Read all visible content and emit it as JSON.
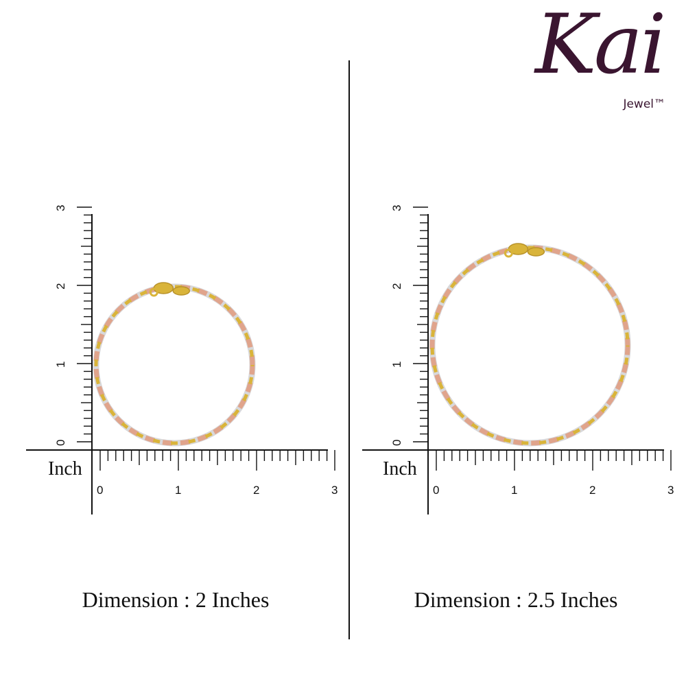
{
  "brand": {
    "script": "Kai",
    "sub": "Jewel™",
    "color": "#3a1530"
  },
  "panels": [
    {
      "unit": "Inch",
      "caption": "Dimension : 2 Inches",
      "axis_max": 3,
      "size_in": 2,
      "x_ticks": [
        "0",
        "1",
        "2",
        "3"
      ],
      "y_ticks": [
        "0",
        "1",
        "2",
        "3"
      ]
    },
    {
      "unit": "Inch",
      "caption": "Dimension : 2.5 Inches",
      "axis_max": 3,
      "size_in": 2.5,
      "x_ticks": [
        "0",
        "1",
        "2",
        "3"
      ],
      "y_ticks": [
        "0",
        "1",
        "2",
        "3"
      ]
    }
  ],
  "bracelet_colors": {
    "gold": "#d9b43a",
    "rose": "#e0a48c",
    "silver": "#d8d8da"
  }
}
